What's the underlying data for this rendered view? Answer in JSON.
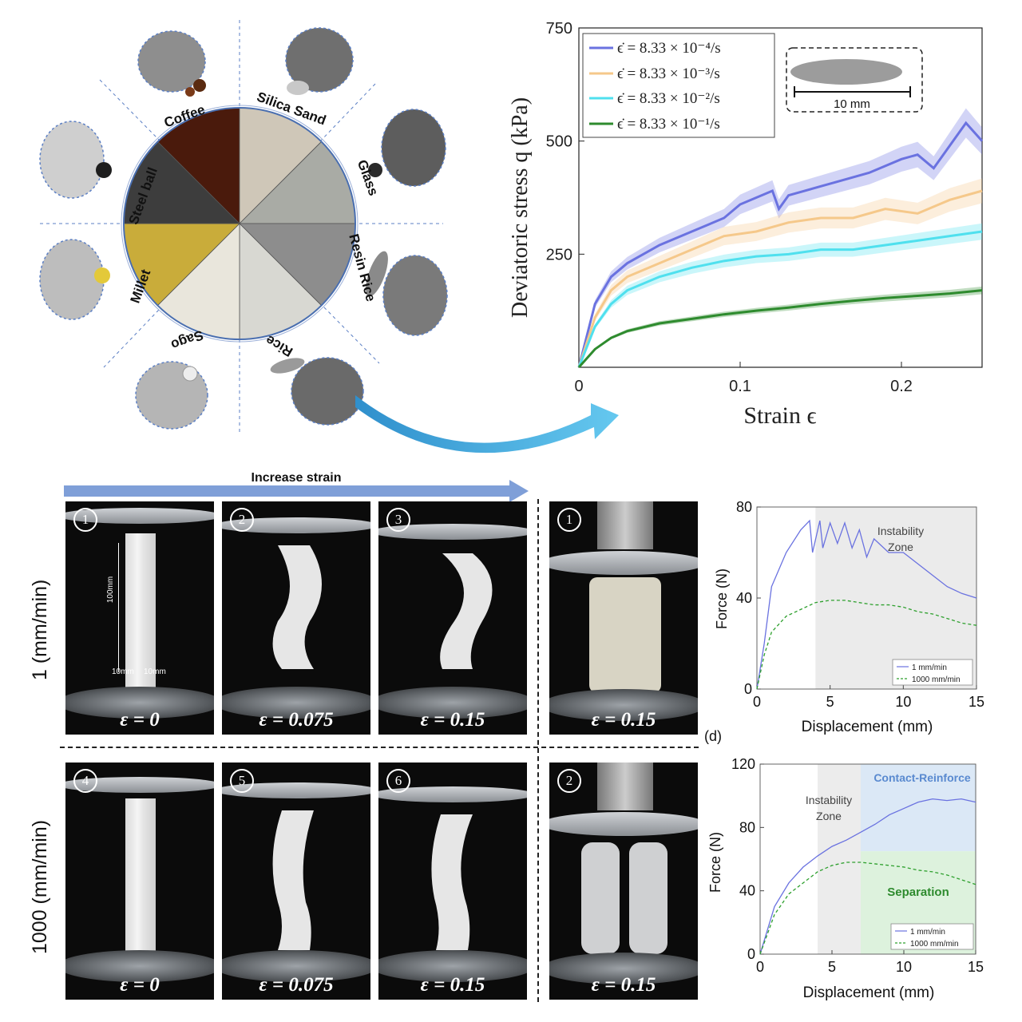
{
  "materials_wheel": {
    "labels": [
      "Coffee",
      "Silica Sand",
      "Glass",
      "Resin Rice",
      "Rice",
      "Sago",
      "Millet",
      "Steel ball"
    ],
    "colors": {
      "coffee": "#4a1a0c",
      "silica_sand": "#cfc7b8",
      "glass": "#a9aba5",
      "resin_rice": "#8d8d8d",
      "rice": "#d8d8d2",
      "sago": "#e9e6dc",
      "millet": "#c9ac3a",
      "steel_ball": "#3d3d3d"
    }
  },
  "stress_chart": {
    "ylabel": "Deviatoric stress q (kPa)",
    "xlabel": "Strain ϵ",
    "x_ticks": [
      "0",
      "0.1",
      "0.2"
    ],
    "y_ticks": [
      "250",
      "500",
      "750"
    ],
    "legend": [
      {
        "label": "ϵ̇ = 8.33 × 10⁻⁴/s",
        "color": "#6a72e0"
      },
      {
        "label": "ϵ̇ = 8.33 × 10⁻³/s",
        "color": "#f5c88a"
      },
      {
        "label": "ϵ̇ = 8.33 × 10⁻²/s",
        "color": "#4fe0ee"
      },
      {
        "label": "ϵ̇ = 8.33 × 10⁻¹/s",
        "color": "#2e8b2e"
      }
    ],
    "inset_scale": "10 mm"
  },
  "chart_data": [
    {
      "type": "line",
      "xlabel": "Strain ϵ",
      "ylabel": "Deviatoric stress q (kPa)",
      "xlim": [
        0,
        0.25
      ],
      "ylim": [
        0,
        750
      ],
      "series": [
        {
          "name": "ϵ̇ = 8.33 × 10⁻⁴/s",
          "color": "#6a72e0",
          "x": [
            0,
            0.01,
            0.02,
            0.03,
            0.05,
            0.07,
            0.09,
            0.1,
            0.12,
            0.124,
            0.13,
            0.15,
            0.16,
            0.18,
            0.2,
            0.21,
            0.22,
            0.24,
            0.25
          ],
          "y": [
            0,
            140,
            200,
            230,
            270,
            300,
            330,
            360,
            390,
            350,
            380,
            400,
            410,
            430,
            460,
            470,
            440,
            540,
            500
          ]
        },
        {
          "name": "ϵ̇ = 8.33 × 10⁻³/s",
          "color": "#f5c88a",
          "x": [
            0,
            0.01,
            0.02,
            0.03,
            0.05,
            0.07,
            0.09,
            0.11,
            0.13,
            0.15,
            0.17,
            0.19,
            0.21,
            0.23,
            0.25
          ],
          "y": [
            0,
            110,
            170,
            200,
            230,
            260,
            290,
            300,
            320,
            330,
            330,
            350,
            340,
            370,
            390
          ]
        },
        {
          "name": "ϵ̇ = 8.33 × 10⁻²/s",
          "color": "#4fe0ee",
          "x": [
            0,
            0.01,
            0.02,
            0.03,
            0.05,
            0.07,
            0.09,
            0.11,
            0.13,
            0.15,
            0.17,
            0.19,
            0.21,
            0.23,
            0.25
          ],
          "y": [
            0,
            90,
            140,
            170,
            200,
            220,
            235,
            245,
            250,
            260,
            260,
            270,
            280,
            290,
            300
          ]
        },
        {
          "name": "ϵ̇ = 8.33 × 10⁻¹/s",
          "color": "#2e8b2e",
          "x": [
            0,
            0.01,
            0.02,
            0.03,
            0.05,
            0.07,
            0.09,
            0.11,
            0.13,
            0.15,
            0.17,
            0.19,
            0.21,
            0.23,
            0.25
          ],
          "y": [
            0,
            40,
            65,
            80,
            97,
            107,
            117,
            125,
            132,
            140,
            147,
            153,
            158,
            163,
            170
          ]
        }
      ]
    },
    {
      "type": "line",
      "xlabel": "Displacement (mm)",
      "ylabel": "Force (N)",
      "xlim": [
        0,
        15
      ],
      "ylim": [
        0,
        80
      ],
      "x_ticks": [
        0,
        5,
        10,
        15
      ],
      "y_ticks": [
        0,
        40,
        80
      ],
      "annotation": "Instability Zone",
      "shade_from": 4,
      "series": [
        {
          "name": "1 mm/min",
          "color": "#6a72e0",
          "x": [
            0,
            0.5,
            1,
            2,
            3,
            3.6,
            3.8,
            4.3,
            4.5,
            5,
            5.5,
            6,
            6.5,
            7,
            7.5,
            8,
            9,
            10,
            11,
            12,
            13,
            14,
            15
          ],
          "y": [
            0,
            20,
            45,
            60,
            70,
            74,
            60,
            74,
            62,
            73,
            64,
            73,
            62,
            70,
            58,
            66,
            60,
            60,
            55,
            50,
            45,
            42,
            40
          ]
        },
        {
          "name": "1000 mm/min",
          "color": "#2ea02e",
          "x": [
            0,
            0.5,
            1,
            2,
            3,
            4,
            5,
            6,
            7,
            8,
            9,
            10,
            11,
            12,
            13,
            14,
            15
          ],
          "y": [
            0,
            15,
            25,
            32,
            35,
            38,
            39,
            39,
            38,
            37,
            37,
            36,
            34,
            33,
            31,
            29,
            28
          ]
        }
      ]
    },
    {
      "type": "line",
      "xlabel": "Displacement (mm)",
      "ylabel": "Force (N)",
      "xlim": [
        0,
        15
      ],
      "ylim": [
        0,
        120
      ],
      "x_ticks": [
        0,
        5,
        10,
        15
      ],
      "y_ticks": [
        0,
        40,
        80,
        120
      ],
      "annotations": [
        "Instability Zone",
        "Contact-Reinforce",
        "Separation"
      ],
      "series": [
        {
          "name": "1 mm/min",
          "color": "#6a72e0",
          "x": [
            0,
            1,
            2,
            3,
            4,
            5,
            6,
            7,
            8,
            9,
            10,
            11,
            12,
            13,
            14,
            15
          ],
          "y": [
            0,
            30,
            45,
            55,
            62,
            68,
            72,
            77,
            82,
            88,
            92,
            96,
            98,
            97,
            98,
            96
          ]
        },
        {
          "name": "1000 mm/min",
          "color": "#2ea02e",
          "x": [
            0,
            1,
            2,
            3,
            4,
            5,
            6,
            7,
            8,
            9,
            10,
            11,
            12,
            13,
            14,
            15
          ],
          "y": [
            0,
            25,
            38,
            45,
            52,
            56,
            58,
            58,
            57,
            56,
            55,
            53,
            52,
            50,
            47,
            44
          ]
        }
      ]
    }
  ],
  "experiment": {
    "increase_strain": "Increase strain",
    "row_labels": [
      "1 (mm/min)",
      "1000 (mm/min)"
    ],
    "dims": {
      "height": "100mm",
      "width_left": "10mm",
      "width_right": "10mm"
    },
    "panels_top": [
      {
        "num": "1",
        "eps": "ε = 0"
      },
      {
        "num": "2",
        "eps": "ε = 0.075"
      },
      {
        "num": "3",
        "eps": "ε = 0.15"
      }
    ],
    "panels_bottom": [
      {
        "num": "4",
        "eps": "ε = 0"
      },
      {
        "num": "5",
        "eps": "ε = 0.075"
      },
      {
        "num": "6",
        "eps": "ε = 0.15"
      }
    ],
    "side_panels": [
      {
        "num": "1",
        "eps": "ε = 0.15"
      },
      {
        "num": "2",
        "eps": "ε = 0.15"
      }
    ],
    "panel_tag": "(d)"
  },
  "force_chart_top": {
    "title": "Instability Zone",
    "legend": [
      "1 mm/min",
      "1000 mm/min"
    ]
  },
  "force_chart_bottom": {
    "instability": "Instability Zone",
    "contact": "Contact-Reinforce",
    "separation": "Separation",
    "legend": [
      "1 mm/min",
      "1000 mm/min"
    ]
  }
}
